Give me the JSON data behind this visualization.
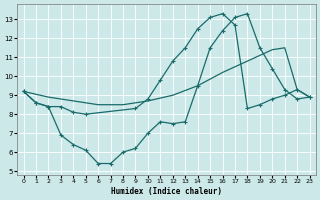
{
  "xlabel": "Humidex (Indice chaleur)",
  "bg_color": "#cce8e8",
  "grid_color": "#ffffff",
  "line_color": "#1a6b6b",
  "xlim": [
    -0.5,
    23.5
  ],
  "ylim": [
    4.8,
    13.8
  ],
  "yticks": [
    5,
    6,
    7,
    8,
    9,
    10,
    11,
    12,
    13
  ],
  "xticks": [
    0,
    1,
    2,
    3,
    4,
    5,
    6,
    7,
    8,
    9,
    10,
    11,
    12,
    13,
    14,
    15,
    16,
    17,
    18,
    19,
    20,
    21,
    22,
    23
  ],
  "lineA_x": [
    0,
    1,
    2,
    3,
    4,
    5,
    9,
    10,
    11,
    12,
    13,
    14,
    15,
    16,
    17,
    18,
    19,
    20,
    21,
    22,
    23
  ],
  "lineA_y": [
    9.2,
    8.6,
    8.4,
    8.4,
    8.1,
    8.0,
    8.3,
    8.8,
    9.8,
    10.8,
    11.5,
    12.5,
    13.1,
    13.3,
    12.7,
    8.3,
    8.5,
    8.8,
    9.0,
    9.3,
    8.9
  ],
  "lineB_x": [
    0,
    1,
    2,
    3,
    4,
    5,
    6,
    7,
    8,
    9,
    10,
    11,
    12,
    13,
    14,
    15,
    16,
    17,
    18,
    19,
    20,
    21,
    22,
    23
  ],
  "lineB_y": [
    9.2,
    8.6,
    8.4,
    6.9,
    6.4,
    6.1,
    5.4,
    5.4,
    6.0,
    6.2,
    7.0,
    7.6,
    7.5,
    7.6,
    9.5,
    11.5,
    12.4,
    13.1,
    13.3,
    11.5,
    10.4,
    9.3,
    8.8,
    8.9
  ],
  "lineC_x": [
    0,
    2,
    4,
    6,
    8,
    10,
    12,
    14,
    16,
    17,
    18,
    19,
    20,
    21,
    22,
    23
  ],
  "lineC_y": [
    9.2,
    8.9,
    8.7,
    8.5,
    8.5,
    8.7,
    9.0,
    9.5,
    10.2,
    10.5,
    10.8,
    11.1,
    11.4,
    11.5,
    9.3,
    8.9
  ]
}
